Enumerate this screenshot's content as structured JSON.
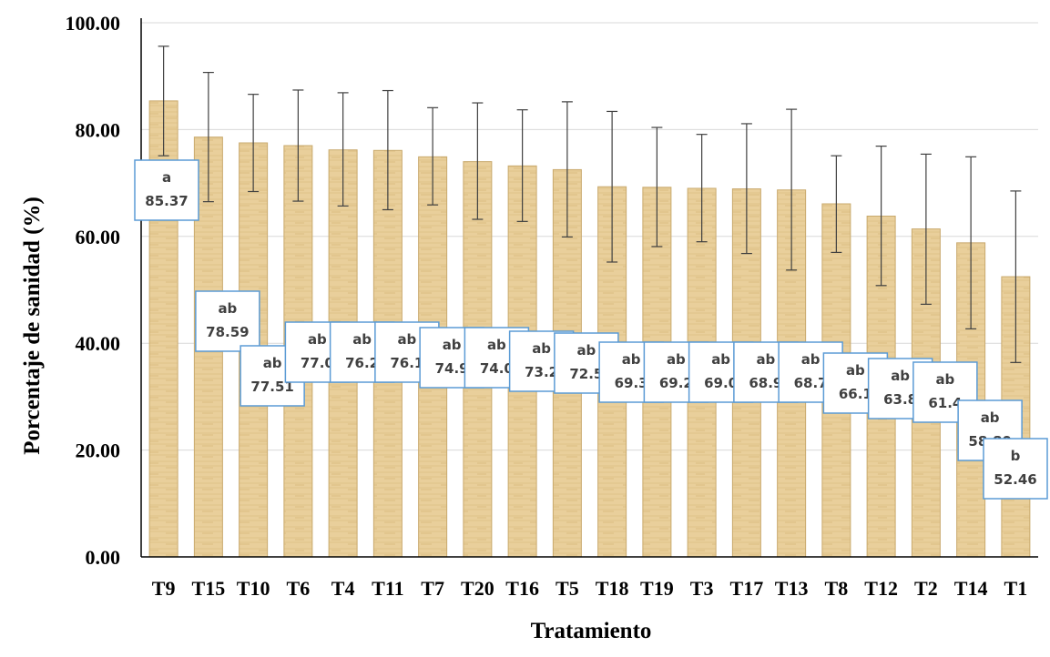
{
  "chart_data": {
    "type": "bar",
    "title": "",
    "xlabel": "Tratamiento",
    "ylabel": "Porcentaje de sanidad (%)",
    "ylim": [
      0,
      100
    ],
    "yticks": [
      "0.00",
      "20.00",
      "40.00",
      "60.00",
      "80.00",
      "100.00"
    ],
    "grid": true,
    "categories": [
      "T9",
      "T15",
      "T10",
      "T6",
      "T4",
      "T11",
      "T7",
      "T20",
      "T16",
      "T5",
      "T18",
      "T19",
      "T3",
      "T17",
      "T13",
      "T8",
      "T12",
      "T2",
      "T14",
      "T1"
    ],
    "values": [
      85.37,
      78.59,
      77.51,
      77.0,
      76.2,
      76.1,
      74.9,
      74.0,
      73.2,
      72.5,
      69.3,
      69.2,
      69.0,
      68.9,
      68.7,
      66.1,
      63.8,
      61.4,
      58.8,
      52.46
    ],
    "error_bars": {
      "upper": [
        95.6,
        90.7,
        86.6,
        87.4,
        86.9,
        87.3,
        84.1,
        85.0,
        83.7,
        85.2,
        83.4,
        80.4,
        79.1,
        81.1,
        83.8,
        75.1,
        76.9,
        75.4,
        74.9,
        68.5
      ],
      "lower": [
        75.1,
        66.5,
        68.4,
        66.6,
        65.7,
        65.0,
        65.9,
        63.2,
        62.8,
        59.9,
        55.2,
        58.1,
        59.0,
        56.8,
        53.7,
        57.0,
        50.8,
        47.3,
        42.7,
        36.4
      ]
    },
    "data_labels": [
      {
        "group": "a",
        "value": "85.37"
      },
      {
        "group": "ab",
        "value": "78.59"
      },
      {
        "group": "ab",
        "value": "77.51"
      },
      {
        "group": "ab",
        "value": "77.0"
      },
      {
        "group": "ab",
        "value": "76.2"
      },
      {
        "group": "ab",
        "value": "76.1"
      },
      {
        "group": "ab",
        "value": "74.9"
      },
      {
        "group": "ab",
        "value": "74.0"
      },
      {
        "group": "ab",
        "value": "73.2"
      },
      {
        "group": "ab",
        "value": "72.5"
      },
      {
        "group": "ab",
        "value": "69.3"
      },
      {
        "group": "ab",
        "value": "69.2"
      },
      {
        "group": "ab",
        "value": "69.0"
      },
      {
        "group": "ab",
        "value": "68.9"
      },
      {
        "group": "ab",
        "value": "68.7"
      },
      {
        "group": "ab",
        "value": "66.1"
      },
      {
        "group": "ab",
        "value": "63.8"
      },
      {
        "group": "ab",
        "value": "61.4"
      },
      {
        "group": "ab",
        "value": "58.80"
      },
      {
        "group": "b",
        "value": "52.46"
      }
    ],
    "colors": {
      "bar_fill": "#e9cf9b",
      "bar_stroke": "#c9aa6e",
      "bar_texture": "#d8b77a",
      "label_border": "#5b9bd5",
      "label_text": "#404040",
      "grid": "#d9d9d9",
      "error_bar": "#404040"
    }
  }
}
